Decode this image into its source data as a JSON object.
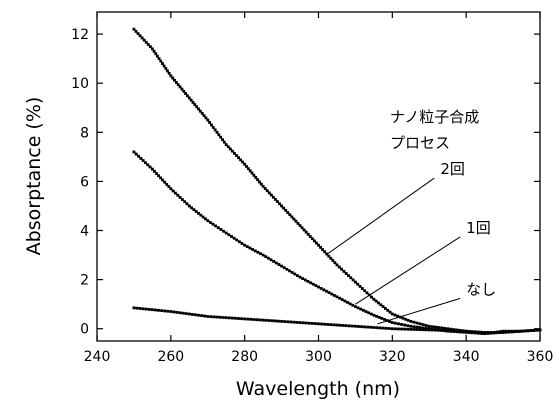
{
  "chart_data": {
    "type": "line",
    "title": "",
    "xlabel": "Wavelength (nm)",
    "ylabel": "Absorptance (%)",
    "xlim": [
      240,
      360
    ],
    "ylim": [
      -0.5,
      12.9
    ],
    "xticks": [
      240,
      260,
      280,
      300,
      320,
      340,
      360
    ],
    "yticks": [
      0,
      2,
      4,
      6,
      8,
      10,
      12
    ],
    "grid": false,
    "legend_heading": [
      "ナノ粒子合成",
      "プロセス"
    ],
    "series": [
      {
        "name": "2回",
        "marker": "dense-dots",
        "x": [
          250,
          255,
          260,
          265,
          270,
          275,
          280,
          285,
          290,
          295,
          300,
          305,
          310,
          315,
          320,
          325,
          330,
          335,
          340,
          345,
          350,
          355,
          360
        ],
        "y": [
          12.2,
          11.4,
          10.3,
          9.4,
          8.5,
          7.5,
          6.7,
          5.8,
          5.0,
          4.2,
          3.4,
          2.6,
          1.9,
          1.2,
          0.6,
          0.3,
          0.1,
          0.0,
          -0.1,
          -0.2,
          -0.1,
          -0.1,
          -0.05
        ]
      },
      {
        "name": "1回",
        "marker": "dense-dots",
        "x": [
          250,
          255,
          260,
          265,
          270,
          275,
          280,
          285,
          290,
          295,
          300,
          305,
          310,
          315,
          320,
          325,
          330,
          335,
          340,
          345,
          350,
          355,
          360
        ],
        "y": [
          7.2,
          6.5,
          5.7,
          5.0,
          4.4,
          3.9,
          3.4,
          3.0,
          2.55,
          2.1,
          1.7,
          1.3,
          0.9,
          0.55,
          0.25,
          0.1,
          0.0,
          -0.1,
          -0.15,
          -0.2,
          -0.15,
          -0.1,
          -0.05
        ]
      },
      {
        "name": "なし",
        "marker": "dense-dots",
        "x": [
          250,
          260,
          270,
          280,
          290,
          300,
          305,
          310,
          315,
          320,
          330,
          340,
          345,
          350,
          355,
          360
        ],
        "y": [
          0.85,
          0.7,
          0.5,
          0.4,
          0.3,
          0.2,
          0.15,
          0.1,
          0.05,
          0.0,
          -0.05,
          -0.1,
          -0.15,
          -0.15,
          -0.1,
          -0.05
        ]
      }
    ],
    "annotations": [
      {
        "text": "2回",
        "series": "2回",
        "point_x": 302,
        "point_y": 3.0,
        "label_x": 333,
        "label_y": 6.3
      },
      {
        "text": "1回",
        "series": "1回",
        "point_x": 310,
        "point_y": 1.0,
        "label_x": 340,
        "label_y": 3.9
      },
      {
        "text": "なし",
        "series": "なし",
        "point_x": 316,
        "point_y": 0.2,
        "label_x": 340,
        "label_y": 1.4
      }
    ]
  }
}
